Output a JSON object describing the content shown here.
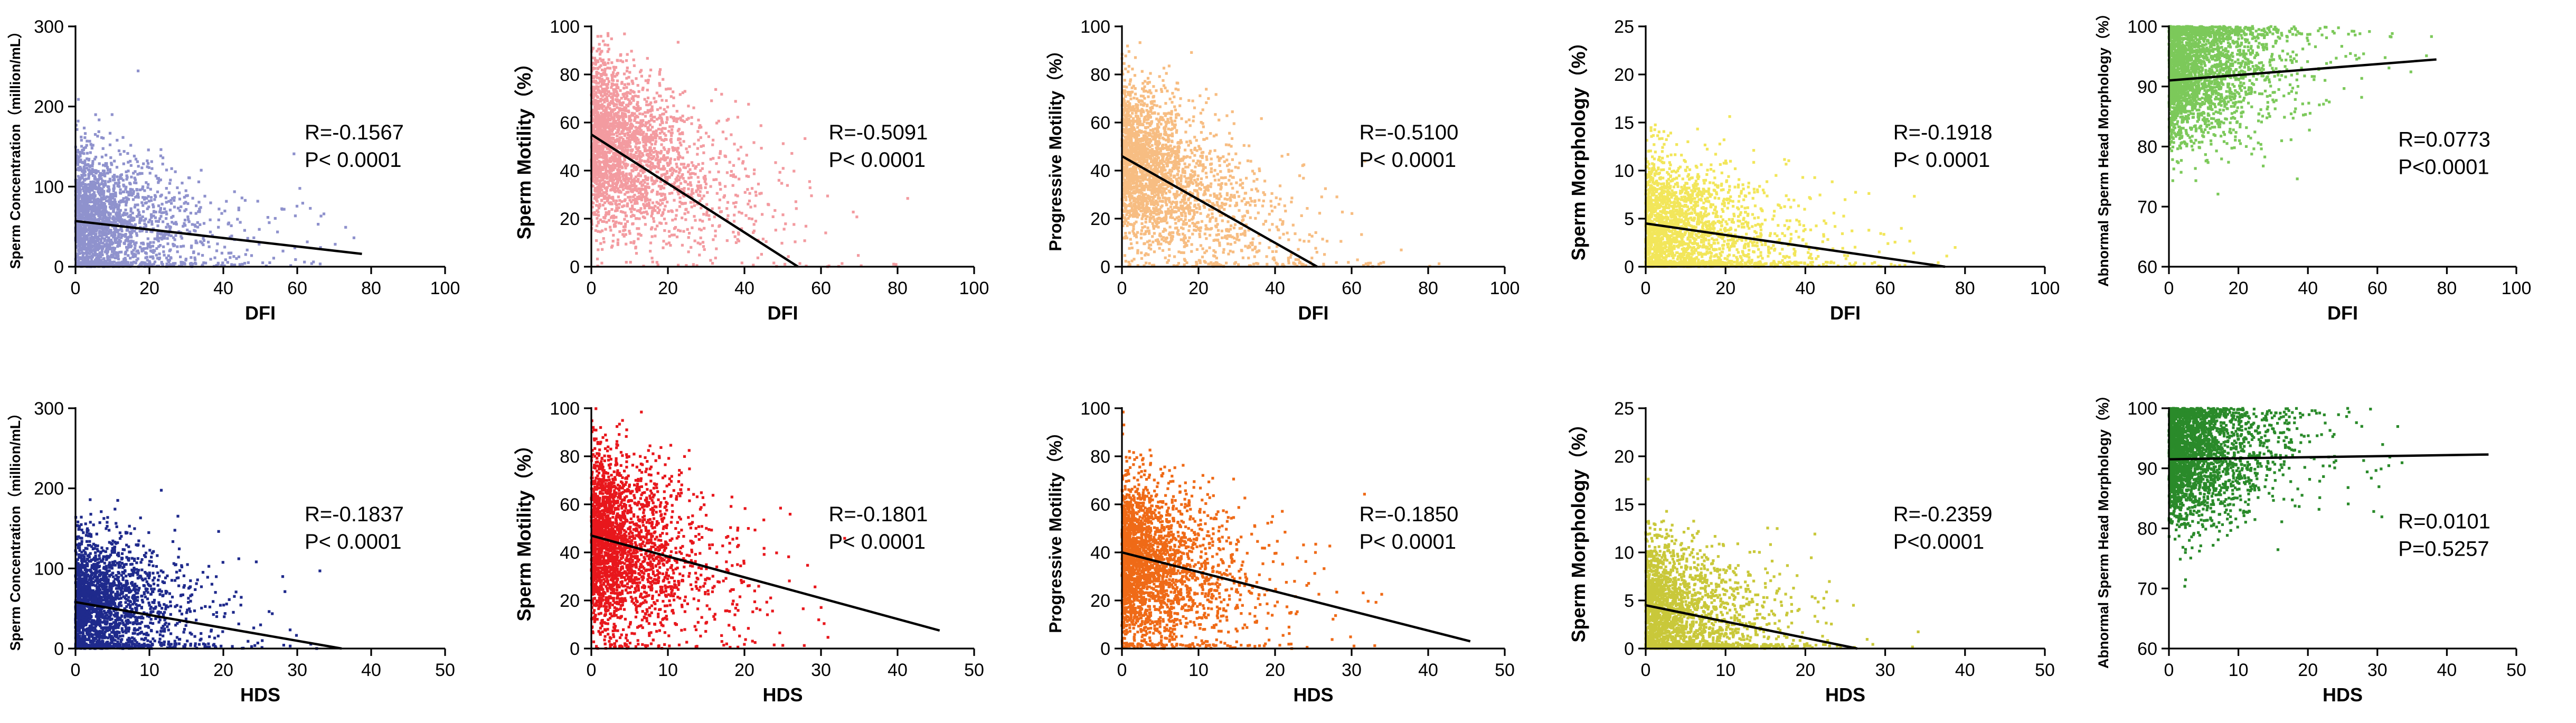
{
  "chart_data": [
    {
      "id": "dfi-concentration",
      "type": "scatter",
      "xlabel": "DFI",
      "ylabel": "Sperm Concentration（million/mL）",
      "xlim": [
        0,
        100
      ],
      "ylim": [
        0,
        300
      ],
      "xticks": [
        "0",
        "20",
        "40",
        "60",
        "80",
        "100"
      ],
      "yticks": [
        "0",
        "100",
        "200",
        "300"
      ],
      "color": "#8f92cd",
      "r_text": "R=-0.1567",
      "p_text": "P< 0.0001",
      "regression": {
        "x": [
          0,
          77.5
        ],
        "y": [
          57,
          16
        ]
      },
      "cloud": {
        "x_scale": 11,
        "x_cap": 80,
        "y_mean": 60,
        "y_sd": 42,
        "slope": -0.55,
        "y_max": 290,
        "n": 2200,
        "seed": 11
      }
    },
    {
      "id": "dfi-motility",
      "type": "scatter",
      "xlabel": "DFI",
      "ylabel": "Sperm Motility（%）",
      "xlim": [
        0,
        100
      ],
      "ylim": [
        0,
        100
      ],
      "xticks": [
        "0",
        "20",
        "40",
        "60",
        "80",
        "100"
      ],
      "yticks": [
        "0",
        "20",
        "40",
        "60",
        "80",
        "100"
      ],
      "color": "#f39ba0",
      "r_text": "R=-0.5091",
      "p_text": "P< 0.0001",
      "regression": {
        "x": [
          0,
          54
        ],
        "y": [
          55,
          0
        ]
      },
      "cloud": {
        "x_scale": 12,
        "x_cap": 90,
        "y_mean": 55,
        "y_sd": 17,
        "slope": -0.7,
        "y_max": 100,
        "n": 2600,
        "seed": 12
      }
    },
    {
      "id": "dfi-progressive",
      "type": "scatter",
      "xlabel": "DFI",
      "ylabel": "Progressive Motility（%）",
      "xlim": [
        0,
        100
      ],
      "ylim": [
        0,
        100
      ],
      "xticks": [
        "0",
        "20",
        "40",
        "60",
        "80",
        "100"
      ],
      "yticks": [
        "0",
        "20",
        "40",
        "60",
        "80",
        "100"
      ],
      "color": "#f7bd82",
      "r_text": "R=-0.5100",
      "p_text": "P< 0.0001",
      "regression": {
        "x": [
          0,
          51
        ],
        "y": [
          46,
          0
        ]
      },
      "cloud": {
        "x_scale": 12,
        "x_cap": 90,
        "y_mean": 46,
        "y_sd": 16,
        "slope": -0.75,
        "y_max": 100,
        "n": 2600,
        "seed": 13
      }
    },
    {
      "id": "dfi-morphology",
      "type": "scatter",
      "xlabel": "DFI",
      "ylabel": "Sperm Morphology（%）",
      "xlim": [
        0,
        100
      ],
      "ylim": [
        0,
        25
      ],
      "xticks": [
        "0",
        "20",
        "40",
        "60",
        "80",
        "100"
      ],
      "yticks": [
        "0",
        "5",
        "10",
        "15",
        "20",
        "25"
      ],
      "color": "#f2e65a",
      "r_text": "R=-0.1918",
      "p_text": "P< 0.0001",
      "regression": {
        "x": [
          0,
          75
        ],
        "y": [
          4.5,
          0
        ]
      },
      "cloud": {
        "x_scale": 12,
        "x_cap": 90,
        "y_mean": 4,
        "y_sd": 3.8,
        "slope": -0.05,
        "y_max": 21,
        "n": 2400,
        "seed": 14
      }
    },
    {
      "id": "dfi-abnormal",
      "type": "scatter",
      "xlabel": "DFI",
      "ylabel": "Abnormal Sperm Head Morphology（%）",
      "xlim": [
        0,
        100
      ],
      "ylim": [
        60,
        100
      ],
      "xticks": [
        "0",
        "20",
        "40",
        "60",
        "80",
        "100"
      ],
      "yticks": [
        "60",
        "70",
        "80",
        "90",
        "100"
      ],
      "color": "#7cc95a",
      "r_text": "R=0.0773",
      "p_text": "P<0.0001",
      "regression": {
        "x": [
          0,
          77
        ],
        "y": [
          91,
          94.5
        ]
      },
      "cloud": {
        "x_scale": 11,
        "x_cap": 80,
        "y_mean": 93,
        "y_sd": 6,
        "slope": 0.03,
        "y_max": 100,
        "y_clip_top": true,
        "n": 2600,
        "seed": 15
      }
    },
    {
      "id": "hds-concentration",
      "type": "scatter",
      "xlabel": "HDS",
      "ylabel": "Sperm Concentration（million/mL）",
      "xlim": [
        0,
        50
      ],
      "ylim": [
        0,
        300
      ],
      "xticks": [
        "0",
        "10",
        "20",
        "30",
        "40",
        "50"
      ],
      "yticks": [
        "0",
        "100",
        "200",
        "300"
      ],
      "color": "#1f2a8c",
      "r_text": "R=-0.1837",
      "p_text": "P< 0.0001",
      "regression": {
        "x": [
          0,
          36
        ],
        "y": [
          58,
          0
        ]
      },
      "cloud": {
        "x_scale": 5,
        "x_cap": 46,
        "y_mean": 60,
        "y_sd": 42,
        "slope": -1.2,
        "y_max": 290,
        "n": 2200,
        "seed": 21
      }
    },
    {
      "id": "hds-motility",
      "type": "scatter",
      "xlabel": "HDS",
      "ylabel": "Sperm Motility（%）",
      "xlim": [
        0,
        50
      ],
      "ylim": [
        0,
        100
      ],
      "xticks": [
        "0",
        "10",
        "20",
        "30",
        "40",
        "50"
      ],
      "yticks": [
        "0",
        "20",
        "40",
        "60",
        "80",
        "100"
      ],
      "color": "#e8171c",
      "r_text": "R=-0.1801",
      "p_text": "P< 0.0001",
      "regression": {
        "x": [
          0,
          45.5
        ],
        "y": [
          47,
          7.5
        ]
      },
      "cloud": {
        "x_scale": 5,
        "x_cap": 46,
        "y_mean": 46,
        "y_sd": 18,
        "slope": -0.8,
        "y_max": 100,
        "n": 2600,
        "seed": 22
      }
    },
    {
      "id": "hds-progressive",
      "type": "scatter",
      "xlabel": "HDS",
      "ylabel": "Progressive Motility（%）",
      "xlim": [
        0,
        50
      ],
      "ylim": [
        0,
        100
      ],
      "xticks": [
        "0",
        "10",
        "20",
        "30",
        "40",
        "50"
      ],
      "yticks": [
        "0",
        "20",
        "40",
        "60",
        "80",
        "100"
      ],
      "color": "#ef6a17",
      "r_text": "R=-0.1850",
      "p_text": "P< 0.0001",
      "regression": {
        "x": [
          0,
          45.5
        ],
        "y": [
          40,
          3
        ]
      },
      "cloud": {
        "x_scale": 5,
        "x_cap": 46,
        "y_mean": 38,
        "y_sd": 17,
        "slope": -0.8,
        "y_max": 100,
        "n": 2600,
        "seed": 23
      }
    },
    {
      "id": "hds-morphology",
      "type": "scatter",
      "xlabel": "HDS",
      "ylabel": "Sperm Morphology（%）",
      "xlim": [
        0,
        50
      ],
      "ylim": [
        0,
        25
      ],
      "xticks": [
        "0",
        "10",
        "20",
        "30",
        "40",
        "50"
      ],
      "yticks": [
        "0",
        "5",
        "10",
        "15",
        "20",
        "25"
      ],
      "color": "#c9c83a",
      "r_text": "R=-0.2359",
      "p_text": "P<0.0001",
      "regression": {
        "x": [
          0,
          26.5
        ],
        "y": [
          4.5,
          0
        ]
      },
      "cloud": {
        "x_scale": 5,
        "x_cap": 46,
        "y_mean": 4,
        "y_sd": 3.8,
        "slope": -0.12,
        "y_max": 21,
        "n": 2400,
        "seed": 24
      }
    },
    {
      "id": "hds-abnormal",
      "type": "scatter",
      "xlabel": "HDS",
      "ylabel": "Abnormal Sperm Head Morphology（%）",
      "xlim": [
        0,
        50
      ],
      "ylim": [
        60,
        100
      ],
      "xticks": [
        "0",
        "10",
        "20",
        "30",
        "40",
        "50"
      ],
      "yticks": [
        "60",
        "70",
        "80",
        "90",
        "100"
      ],
      "color": "#2a8a2a",
      "r_text": "R=0.0101",
      "p_text": "P=0.5257",
      "regression": {
        "x": [
          0,
          46
        ],
        "y": [
          91.5,
          92.3
        ]
      },
      "cloud": {
        "x_scale": 5,
        "x_cap": 46,
        "y_mean": 93,
        "y_sd": 6,
        "slope": 0.02,
        "y_max": 100,
        "y_clip_top": true,
        "n": 2600,
        "seed": 25
      }
    }
  ]
}
